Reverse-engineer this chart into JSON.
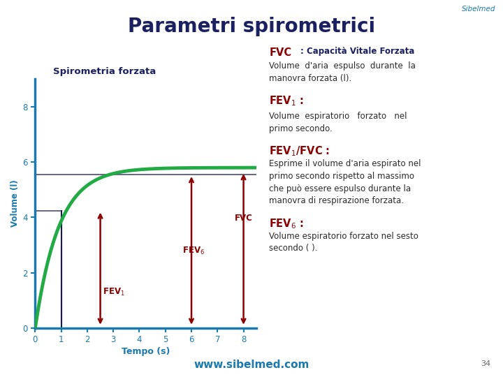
{
  "title": "Parametri spirometrici",
  "chart_title": "Spirometria forzata",
  "xlabel": "Tempo (s)",
  "ylabel": "Volume (l)",
  "bg_color": "#ffffff",
  "curve_color": "#22aa44",
  "curve_lw": 3.5,
  "axis_color": "#1a7aad",
  "arrow_color": "#8b0000",
  "hline_color": "#4a4a7a",
  "vline_color": "#1a1a4a",
  "sidebar_color": "#1a7aad",
  "fev1_x": 1.0,
  "fev1_y": 4.25,
  "fev6_x": 6.0,
  "fev6_y": 5.55,
  "fvc_x": 8.0,
  "fvc_y": 5.65,
  "fvc_asymptote": 5.8,
  "curve_k": 1.1,
  "xlim": [
    0,
    8.5
  ],
  "ylim": [
    0,
    9
  ],
  "xticks": [
    0,
    1,
    2,
    3,
    4,
    5,
    6,
    7,
    8
  ],
  "yticks": [
    0,
    2,
    4,
    6,
    8
  ],
  "sibelmed_color": "#1a7aad",
  "website_color": "#1a7aad",
  "title_color": "#1a2060",
  "fev_label_color": "#8b0000",
  "body_text_color": "#2a2a2a",
  "section_label_color": "#1a2060"
}
